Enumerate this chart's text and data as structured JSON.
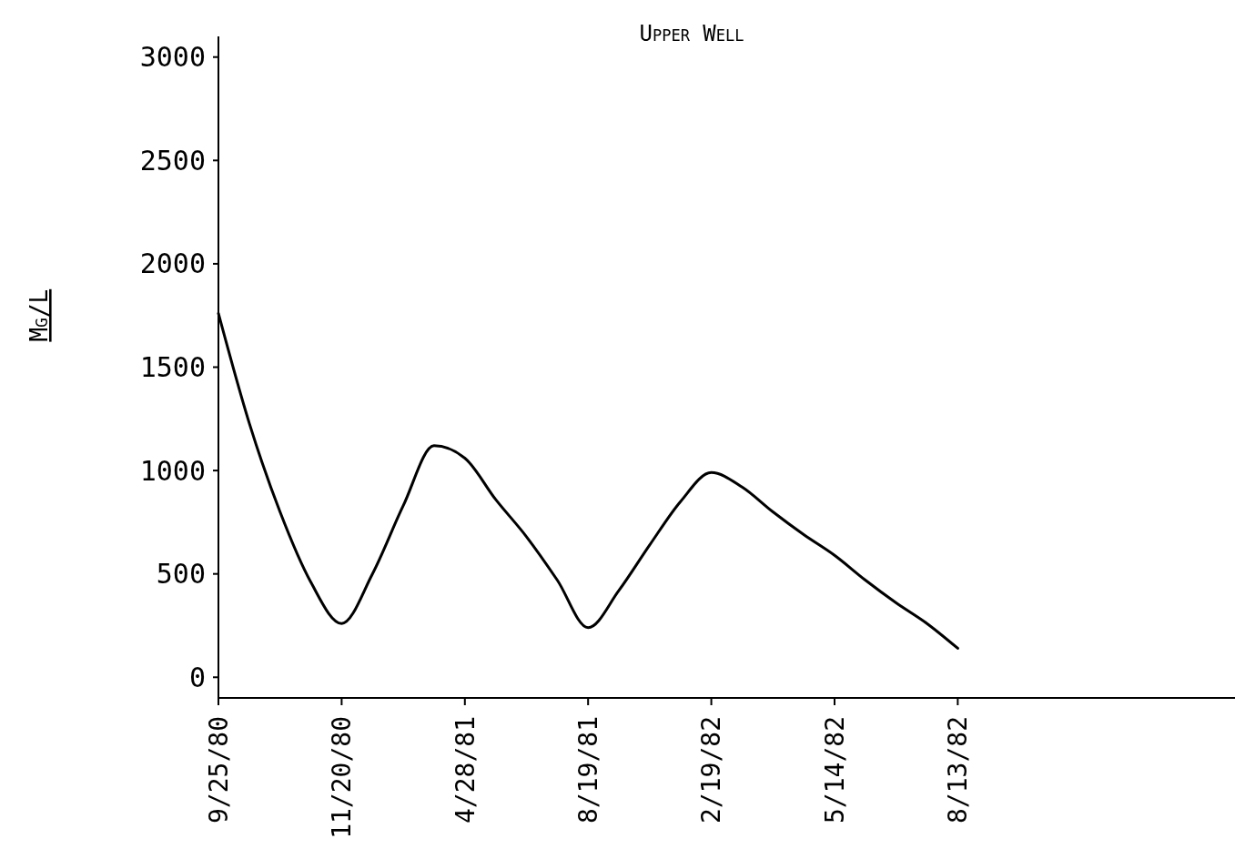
{
  "chart_data": {
    "type": "line",
    "title": "Upper Well",
    "ylabel": "Mg/L",
    "categories": [
      "9/25/80",
      null,
      null,
      null,
      "11/20/80",
      null,
      null,
      null,
      "4/28/81",
      null,
      null,
      null,
      "8/19/81",
      null,
      null,
      null,
      "2/19/82",
      null,
      null,
      null,
      "5/14/82",
      null,
      null,
      null,
      "8/13/82",
      null,
      null,
      null,
      null,
      null,
      null,
      null,
      null,
      null
    ],
    "series": [
      {
        "color": "#000000",
        "values": [
          1760,
          1230,
          800,
          460,
          260,
          500,
          830,
          1120,
          1060,
          860,
          680,
          470,
          240,
          420,
          640,
          850,
          990,
          920,
          800,
          690,
          590,
          470,
          360,
          260,
          140,
          null,
          null,
          null,
          null,
          null,
          null,
          null,
          null,
          null
        ]
      }
    ],
    "ylim": [
      -100,
      3100
    ],
    "yticks": [
      0,
      500,
      1000,
      1500,
      2000,
      2500,
      3000
    ],
    "marker": "none",
    "line_style": "solid"
  }
}
